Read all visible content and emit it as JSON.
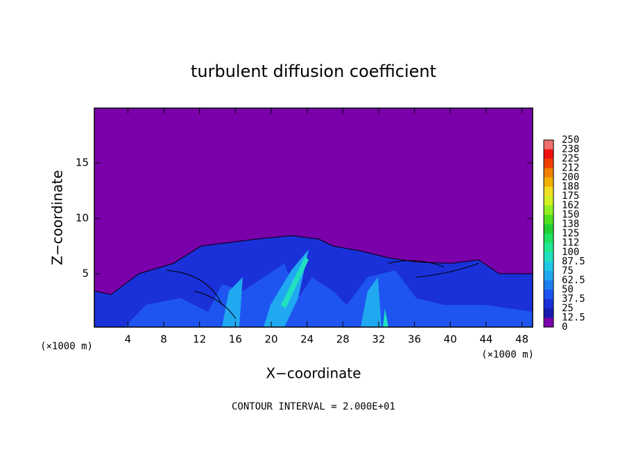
{
  "chart_data": {
    "type": "contour",
    "title": "turbulent diffusion coefficient",
    "x_label": "X−coordinate",
    "y_label": "Z−coordinate",
    "x_unit_left": "(×1000 m)",
    "x_unit_right": "(×1000 m)",
    "annotation": "CONTOUR INTERVAL = 2.000E+01",
    "xlim": [
      0.25,
      49.2
    ],
    "xticks": [
      4,
      8,
      12,
      16,
      20,
      24,
      28,
      32,
      36,
      40,
      44,
      48
    ],
    "ylim": [
      0.2,
      19.94
    ],
    "yticks": [
      5,
      10,
      15
    ],
    "colorbar": {
      "levels": [
        0,
        12.5,
        25,
        37.5,
        50,
        62.5,
        75,
        87.5,
        100,
        112,
        125,
        138,
        150,
        162,
        175,
        188,
        200,
        212,
        225,
        238,
        250
      ],
      "colors": [
        "#7a00aa",
        "#1a1ab0",
        "#1a30d8",
        "#1e55f0",
        "#1e80f0",
        "#20a8f0",
        "#20c8e8",
        "#20e0c0",
        "#20e890",
        "#20e060",
        "#20d030",
        "#50e020",
        "#90f020",
        "#d0f020",
        "#f0e020",
        "#f0b000",
        "#f08000",
        "#f04000",
        "#f01010",
        "#f07070"
      ]
    }
  }
}
